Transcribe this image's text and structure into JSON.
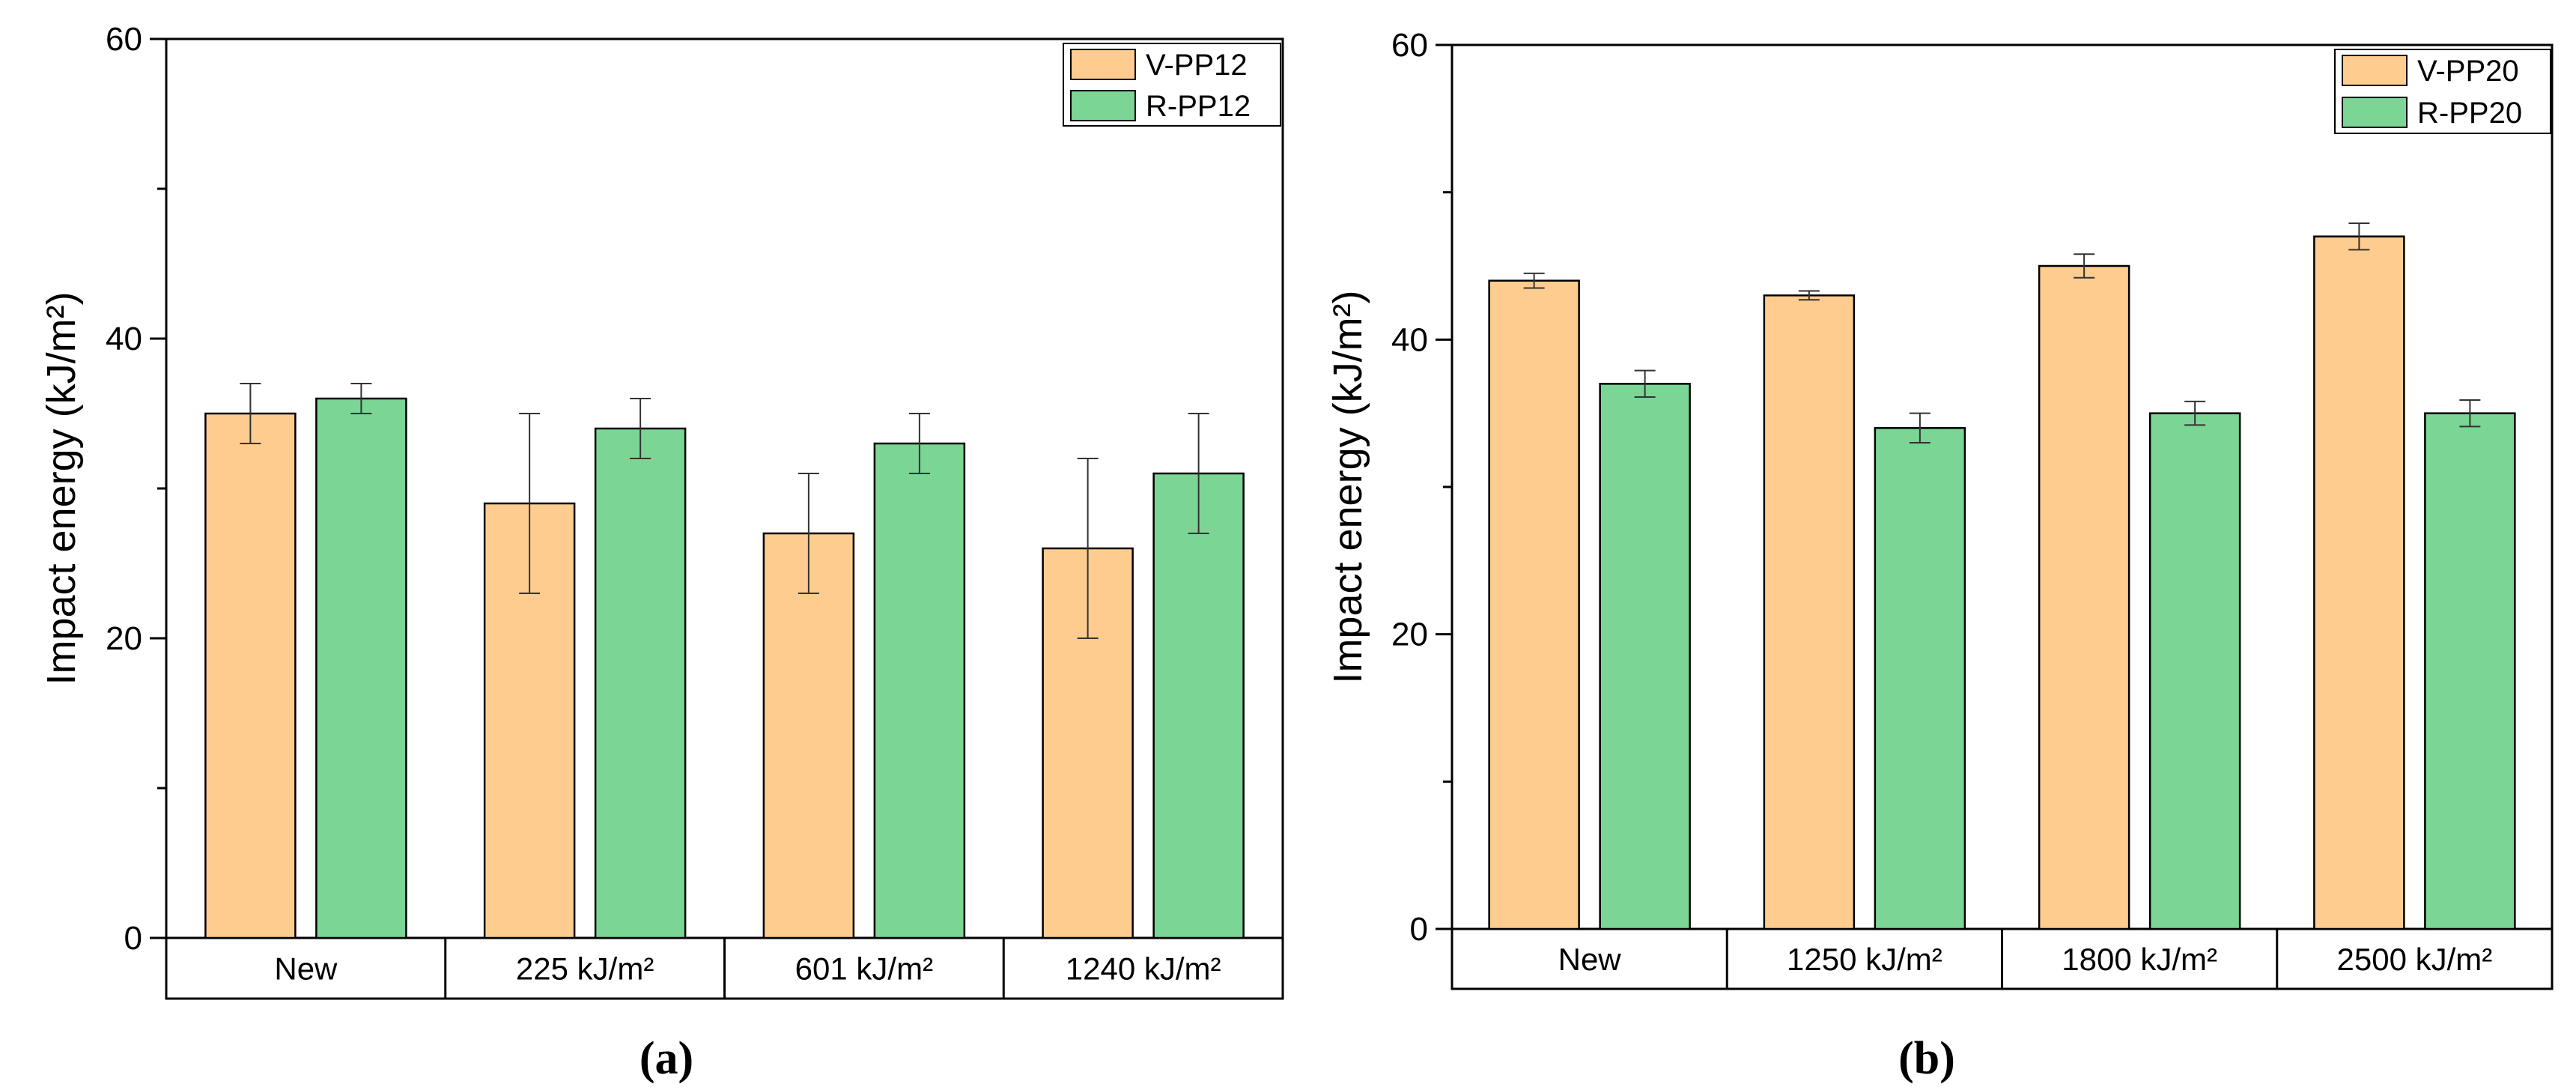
{
  "colors": {
    "virgin": "#FECC8F",
    "recycled": "#7BD594",
    "stroke": "#000000"
  },
  "chart_data": [
    {
      "type": "bar",
      "panel_label": "(a)",
      "ylabel": "Impact energy (kJ/m²)",
      "ylim": [
        0,
        60
      ],
      "yticks": [
        "0",
        "20",
        "40",
        "60"
      ],
      "categories": [
        "New",
        "225 kJ/m²",
        "601 kJ/m²",
        "1240 kJ/m²"
      ],
      "legend_position": "top-right",
      "series": [
        {
          "name": "V-PP12",
          "color_key": "virgin",
          "values": [
            35,
            29,
            27,
            26
          ],
          "errors": [
            2,
            6,
            4,
            6
          ]
        },
        {
          "name": "R-PP12",
          "color_key": "recycled",
          "values": [
            36,
            34,
            33,
            31
          ],
          "errors": [
            1,
            2,
            2,
            4
          ]
        }
      ]
    },
    {
      "type": "bar",
      "panel_label": "(b)",
      "ylabel": "Impact energy (kJ/m²)",
      "ylim": [
        0,
        60
      ],
      "yticks": [
        "0",
        "20",
        "40",
        "60"
      ],
      "categories": [
        "New",
        "1250 kJ/m²",
        "1800 kJ/m²",
        "2500 kJ/m²"
      ],
      "legend_position": "top-right",
      "series": [
        {
          "name": "V-PP20",
          "color_key": "virgin",
          "values": [
            44,
            43,
            45,
            47
          ],
          "errors": [
            0.5,
            0.3,
            0.8,
            0.9
          ]
        },
        {
          "name": "R-PP20",
          "color_key": "recycled",
          "values": [
            37,
            34,
            35,
            35
          ],
          "errors": [
            0.9,
            1.0,
            0.8,
            0.9
          ]
        }
      ]
    }
  ]
}
